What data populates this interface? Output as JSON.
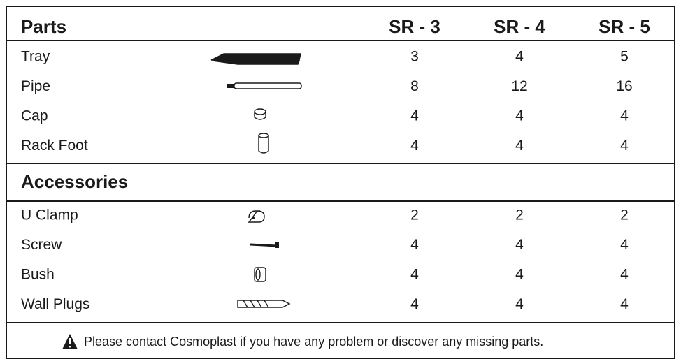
{
  "header": {
    "title": "Parts",
    "columns": [
      "SR - 3",
      "SR - 4",
      "SR - 5"
    ]
  },
  "parts": {
    "rows": [
      {
        "name": "Tray",
        "values": [
          3,
          4,
          5
        ]
      },
      {
        "name": "Pipe",
        "values": [
          8,
          12,
          16
        ]
      },
      {
        "name": "Cap",
        "values": [
          4,
          4,
          4
        ]
      },
      {
        "name": "Rack Foot",
        "values": [
          4,
          4,
          4
        ]
      }
    ]
  },
  "accessories": {
    "title": "Accessories",
    "rows": [
      {
        "name": "U Clamp",
        "values": [
          2,
          2,
          2
        ]
      },
      {
        "name": "Screw",
        "values": [
          4,
          4,
          4
        ]
      },
      {
        "name": "Bush",
        "values": [
          4,
          4,
          4
        ]
      },
      {
        "name": "Wall Plugs",
        "values": [
          4,
          4,
          4
        ]
      }
    ]
  },
  "footer": {
    "note": "Please contact Cosmoplast if you have any problem or discover any missing parts."
  }
}
